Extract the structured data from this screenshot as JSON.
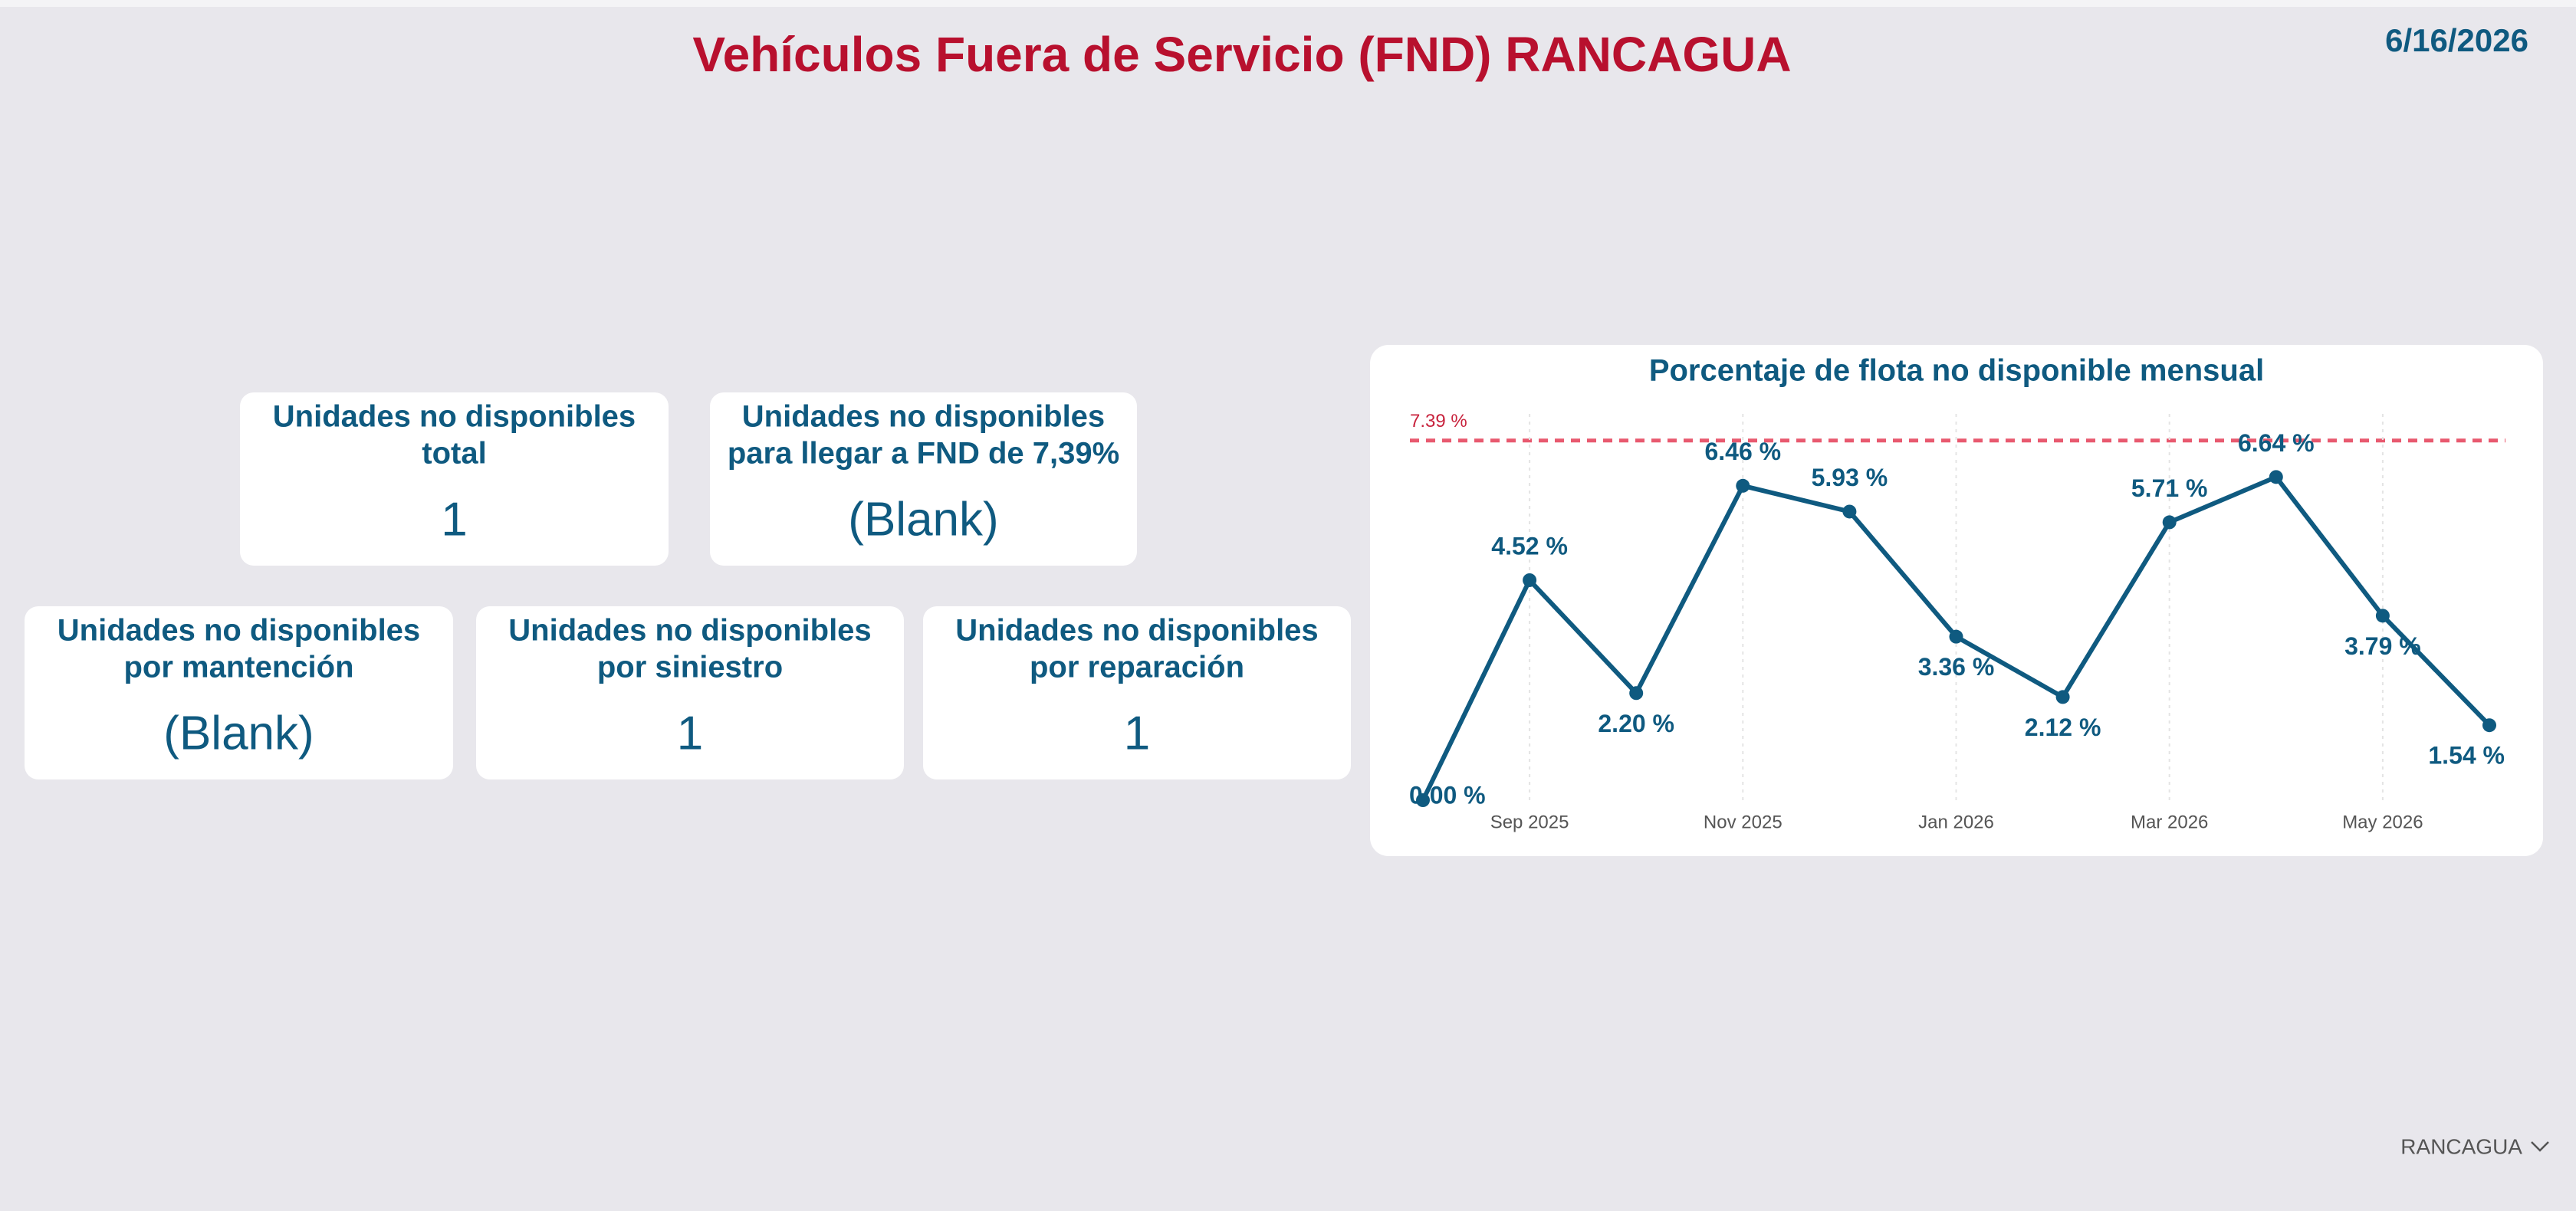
{
  "header": {
    "title": "Vehículos Fuera de Servicio (FND) RANCAGUA",
    "date": "6/16/2026"
  },
  "cards": [
    {
      "label_lines": [
        "Unidades no disponibles",
        "total"
      ],
      "value": "1"
    },
    {
      "label_lines": [
        "Unidades no disponibles",
        "para llegar a FND de 7,39%"
      ],
      "value": "(Blank)"
    },
    {
      "label_lines": [
        "Unidades no disponibles",
        "por mantención"
      ],
      "value": "(Blank)"
    },
    {
      "label_lines": [
        "Unidades no disponibles",
        "por siniestro"
      ],
      "value": "1"
    },
    {
      "label_lines": [
        "Unidades no disponibles",
        "por reparación"
      ],
      "value": "1"
    }
  ],
  "chart_data": {
    "type": "line",
    "title": "Porcentaje de flota no disponible mensual",
    "categories": [
      null,
      "Sep 2025",
      null,
      "Nov 2025",
      null,
      "Jan 2026",
      null,
      "Mar 2026",
      null,
      "May 2026",
      null
    ],
    "values": [
      0.0,
      4.52,
      2.2,
      6.46,
      5.93,
      3.36,
      2.12,
      5.71,
      6.64,
      3.79,
      1.54
    ],
    "value_labels": [
      "0.00 %",
      "4.52 %",
      "2.20 %",
      "6.46 %",
      "5.93 %",
      "3.36 %",
      "2.12 %",
      "5.71 %",
      "6.64 %",
      "3.79 %",
      "1.54 %"
    ],
    "color": "#0f5a80",
    "ylim": [
      0,
      8
    ],
    "reference_line": {
      "value": 7.39,
      "label": "7.39 %",
      "color": "#e8596f"
    }
  },
  "slicer": {
    "selected": "RANCAGUA"
  }
}
